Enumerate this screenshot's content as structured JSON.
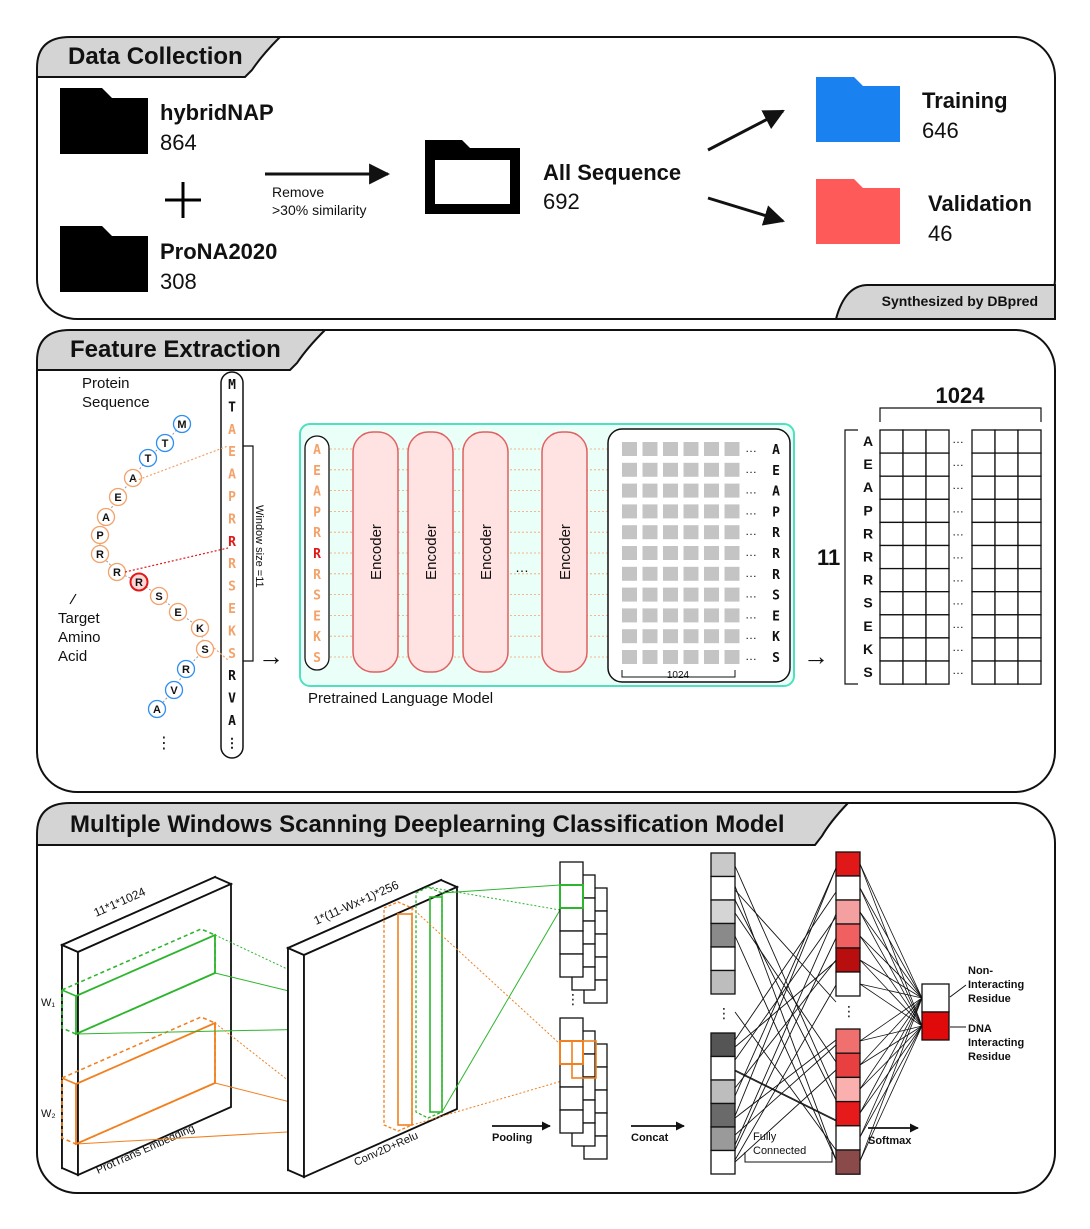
{
  "colors": {
    "training": "#1a82f0",
    "validation": "#ff5a5a",
    "orange": "#f3a26a",
    "red_residue": "#e01818",
    "blue_residue": "#2d8ff0",
    "encoder_fill": "#ffe2e2",
    "encoder_stroke": "#e06060",
    "plm_border": "#4fe0c0",
    "green": "#2db52d",
    "orange_line": "#f08020"
  },
  "section1": {
    "title": "Data Collection",
    "db1": {
      "name": "hybridNAP",
      "count": "864"
    },
    "db2": {
      "name": "ProNA2020",
      "count": "308"
    },
    "plus": "+",
    "filter_line1": "Remove",
    "filter_line2": ">30% similarity",
    "all": {
      "name": "All Sequence",
      "count": "692"
    },
    "training": {
      "name": "Training",
      "count": "646"
    },
    "validation": {
      "name": "Validation",
      "count": "46"
    },
    "footer": "Synthesized by DBpred"
  },
  "section2": {
    "title": "Feature Extraction",
    "protein_label_1": "Protein",
    "protein_label_2": "Sequence",
    "target_label_1": "Target",
    "target_label_2": "Amino",
    "target_label_3": "Acid",
    "chain_dots": "⋮",
    "chain": [
      "M",
      "T",
      "T",
      "A",
      "E",
      "A",
      "P",
      "R",
      "R",
      "R",
      "S",
      "E",
      "K",
      "S",
      "R",
      "V",
      "A"
    ],
    "seq_column": [
      "M",
      "T",
      "A",
      "E",
      "A",
      "P",
      "R",
      "R",
      "R",
      "S",
      "E",
      "K",
      "S",
      "R",
      "V",
      "A",
      "⋮"
    ],
    "window_label": "Window size =11",
    "window": [
      "A",
      "E",
      "A",
      "P",
      "R",
      "R",
      "R",
      "S",
      "E",
      "K",
      "S"
    ],
    "encoder_label": "Encoder",
    "ellipsis": "…",
    "plm_label": "Pretrained Language Model",
    "embed_dim": "1024",
    "rows_label": "11",
    "arrow": "→"
  },
  "section3": {
    "title": "Multiple Windows Scanning Deeplearning Classification Model",
    "input_dim": "11*1*1024",
    "conv_dim": "1*(11-Wx+1)*256",
    "w1": "W₁",
    "w2": "W₂",
    "embedding_label": "ProtTrans Embedding",
    "conv_label": "Conv2D+Relu",
    "pooling": "Pooling",
    "concat": "Concat",
    "fc_1": "Fully",
    "fc_2": "Connected",
    "softmax": "Softmax",
    "vdots": "⋮",
    "concat_top": [
      "#c9c9c9",
      "#ffffff",
      "#d5d5d5",
      "#8a8a8a",
      "#ffffff",
      "#bdbdbd"
    ],
    "concat_bottom": [
      "#555555",
      "#ffffff",
      "#bdbdbd",
      "#6a6a6a",
      "#9a9a9a",
      "#ffffff"
    ],
    "fc_top": [
      "#e01818",
      "#ffffff",
      "#f5a0a0",
      "#f06060",
      "#b80e0e",
      "#ffffff"
    ],
    "fc_bottom": [
      "#f07070",
      "#e84040",
      "#fbb0b0",
      "#e61a1a",
      "#ffffff",
      "#8a4a4a"
    ],
    "out_colors": [
      "#ffffff",
      "#e00a0a"
    ],
    "non_interacting_1": "Non-",
    "non_interacting_2": "Interacting",
    "non_interacting_3": "Residue",
    "dna_1": "DNA",
    "dna_2": "Interacting",
    "dna_3": "Residue"
  }
}
